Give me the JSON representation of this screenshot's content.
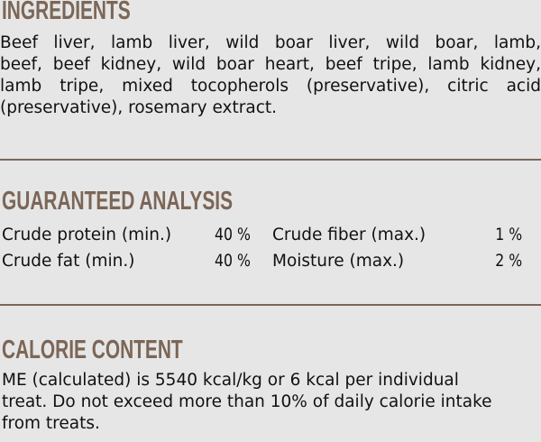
{
  "colors": {
    "background": "#e6e6e6",
    "heading": "#7b6657",
    "rule": "#7b6657",
    "text": "#111111"
  },
  "ingredients": {
    "heading": "INGREDIENTS",
    "lines": [
      "Beef liver, lamb liver, wild boar liver, wild boar, lamb,",
      "beef, beef kidney, wild boar heart, beef tripe, lamb kidney,",
      "lamb tripe, mixed tocopherols (preservative), citric acid",
      "(preservative), rosemary extract."
    ]
  },
  "analysis": {
    "heading": "GUARANTEED ANALYSIS",
    "rows": [
      {
        "left_label": "Crude protein (min.)",
        "left_value": "40 %",
        "right_label": "Crude fiber (max.)",
        "right_value": "1 %"
      },
      {
        "left_label": "Crude fat (min.)",
        "left_value": "40 %",
        "right_label": "Moisture (max.)",
        "right_value": "2 %"
      }
    ]
  },
  "calorie": {
    "heading": "CALORIE CONTENT",
    "lines": [
      "ME (calculated) is 5540 kcal/kg or 6 kcal per individual",
      "treat. Do not exceed more than 10% of daily calorie intake",
      "from treats."
    ]
  }
}
